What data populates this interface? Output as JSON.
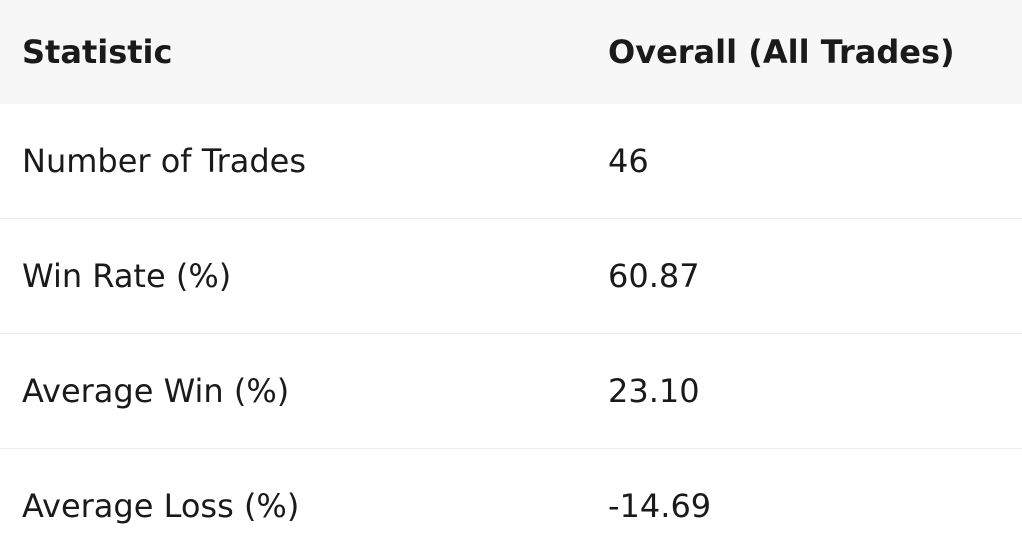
{
  "table": {
    "header": [
      "Statistic",
      "Overall (All Trades)"
    ],
    "rows": [
      [
        "Number of Trades",
        "46"
      ],
      [
        "Win Rate (%)",
        "60.87"
      ],
      [
        "Average Win (%)",
        "23.10"
      ],
      [
        "Average Loss (%)",
        "-14.69"
      ]
    ]
  }
}
